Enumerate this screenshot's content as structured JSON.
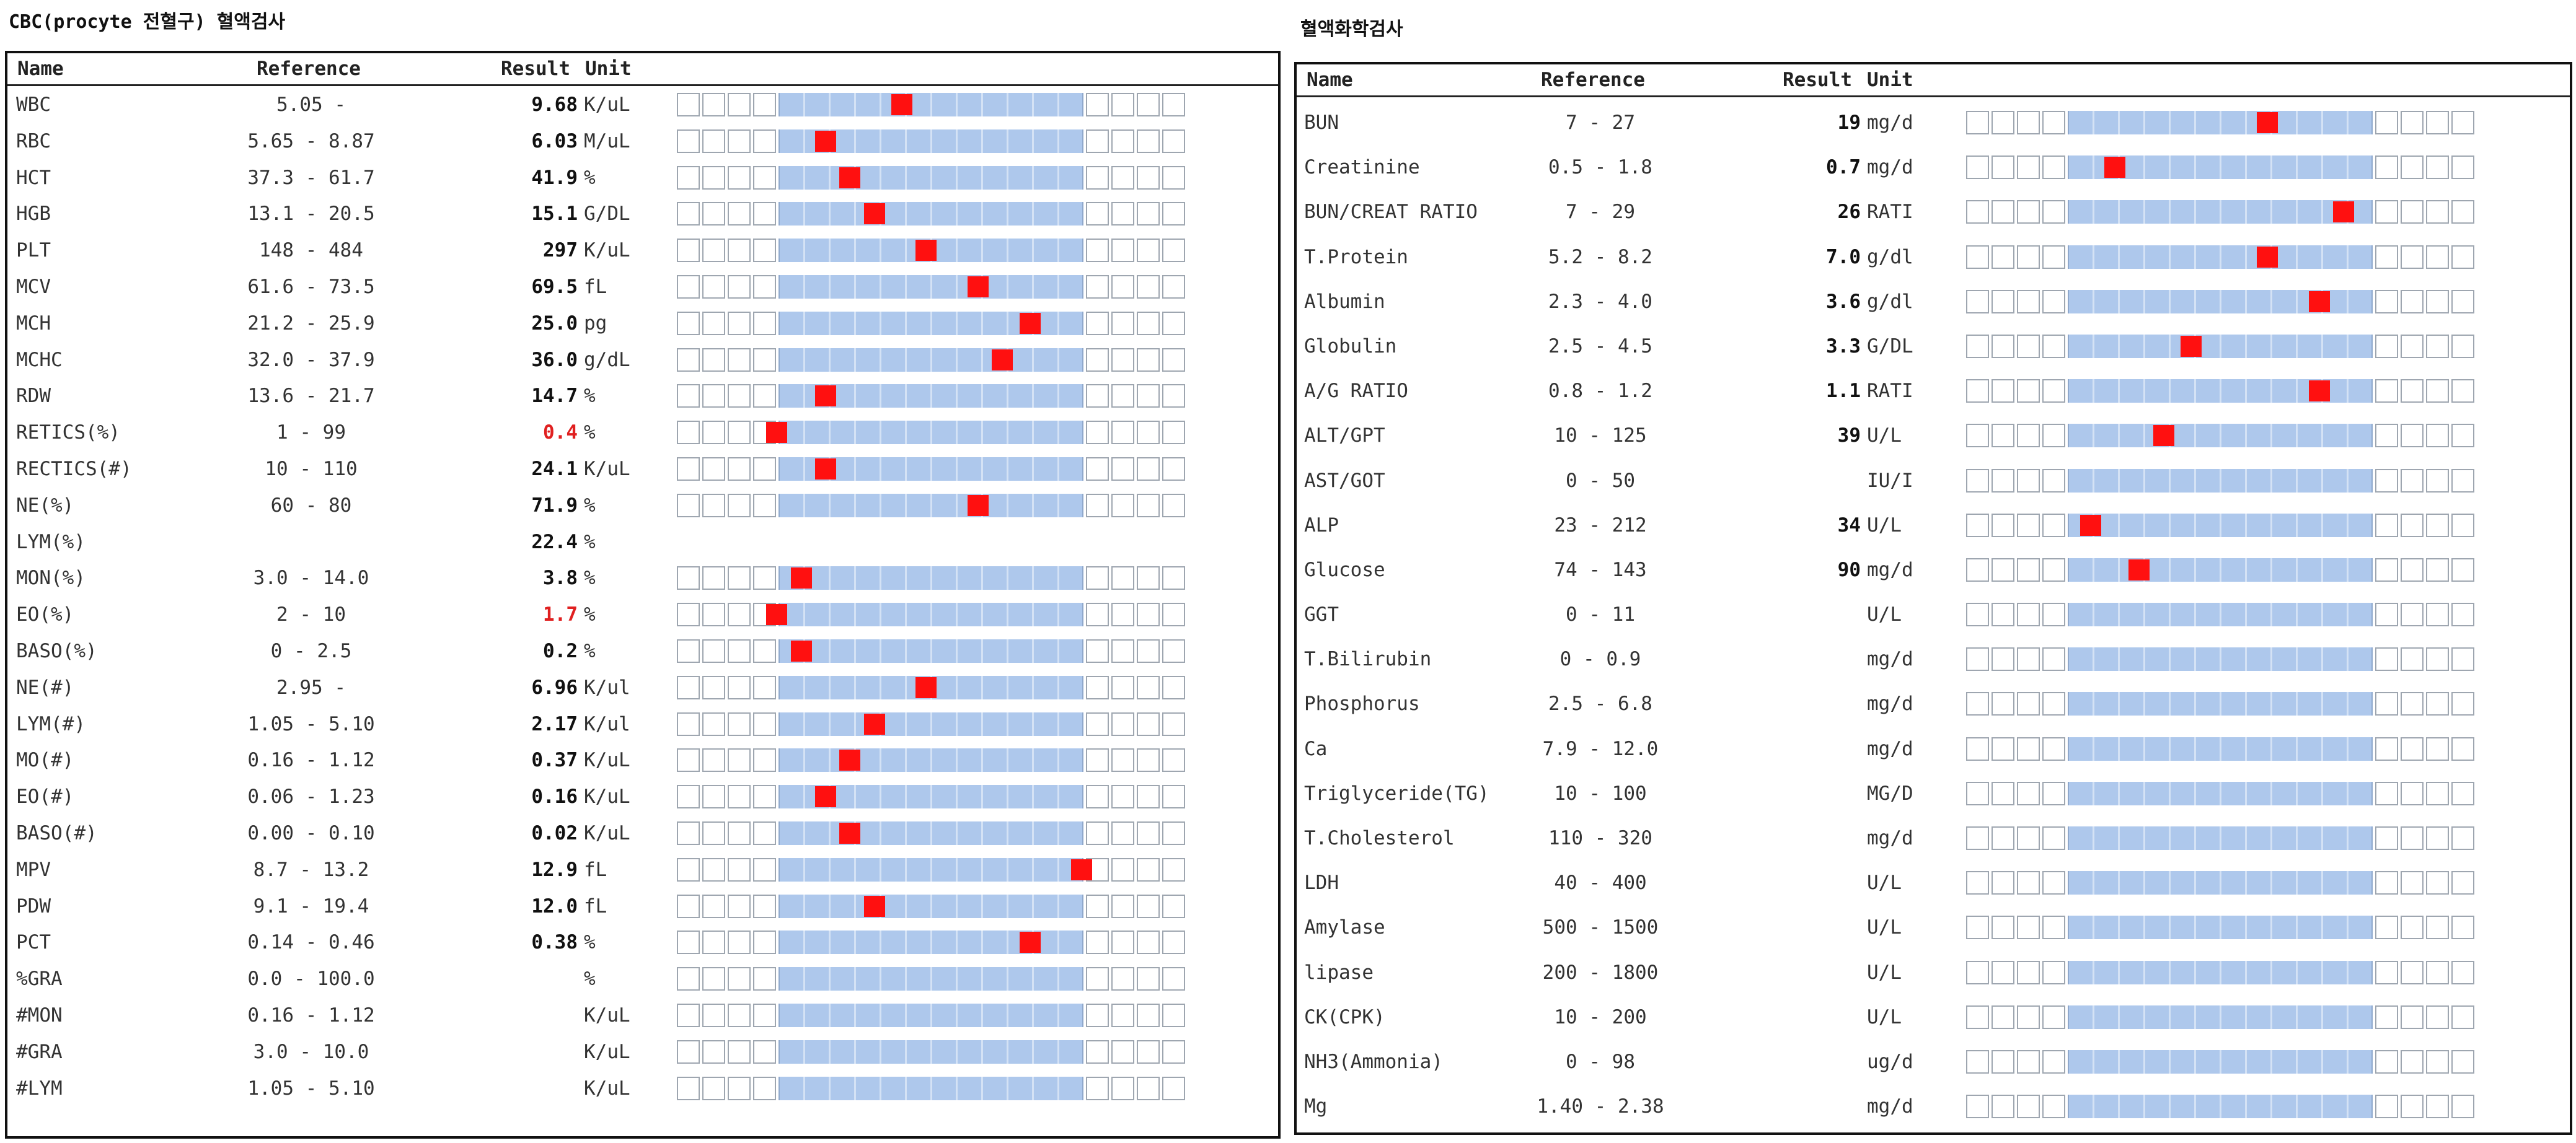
{
  "left": {
    "title": "CBC(procyte 전혈구) 혈액검사",
    "headers": {
      "name": "Name",
      "reference": "Reference",
      "result": "Result",
      "unit": "Unit"
    },
    "rows": [
      {
        "name": "WBC",
        "ref": "5.05 -",
        "result": "9.68",
        "unit": "K/uL",
        "level": 0.37,
        "gauge": true
      },
      {
        "name": "RBC",
        "ref": "5.65 - 8.87",
        "result": "6.03",
        "unit": "M/uL",
        "level": 0.12,
        "gauge": true
      },
      {
        "name": "HCT",
        "ref": "37.3 - 61.7",
        "result": "41.9",
        "unit": "%",
        "level": 0.2,
        "gauge": true
      },
      {
        "name": "HGB",
        "ref": "13.1 - 20.5",
        "result": "15.1",
        "unit": "G/DL",
        "level": 0.28,
        "gauge": true
      },
      {
        "name": "PLT",
        "ref": "148 - 484",
        "result": "297",
        "unit": "K/uL",
        "level": 0.45,
        "gauge": true
      },
      {
        "name": "MCV",
        "ref": "61.6 - 73.5",
        "result": "69.5",
        "unit": "fL",
        "level": 0.62,
        "gauge": true
      },
      {
        "name": "MCH",
        "ref": "21.2 - 25.9",
        "result": "25.0",
        "unit": "pg",
        "level": 0.79,
        "gauge": true
      },
      {
        "name": "MCHC",
        "ref": "32.0 - 37.9",
        "result": "36.0",
        "unit": "g/dL",
        "level": 0.7,
        "gauge": true
      },
      {
        "name": "RDW",
        "ref": "13.6 - 21.7",
        "result": "14.7",
        "unit": "%",
        "level": 0.12,
        "gauge": true
      },
      {
        "name": "RETICS(%)",
        "ref": "1 - 99",
        "result": "0.4",
        "unit": "%",
        "level": -0.04,
        "gauge": true,
        "abnormal": true
      },
      {
        "name": "RECTICS(#)",
        "ref": "10 - 110",
        "result": "24.1",
        "unit": "K/uL",
        "level": 0.12,
        "gauge": true
      },
      {
        "name": "NE(%)",
        "ref": "60 - 80",
        "result": "71.9",
        "unit": "%",
        "level": 0.62,
        "gauge": true
      },
      {
        "name": "LYM(%)",
        "ref": "",
        "result": "22.4",
        "unit": "%",
        "level": null,
        "gauge": false
      },
      {
        "name": "MON(%)",
        "ref": "3.0 - 14.0",
        "result": "3.8",
        "unit": "%",
        "level": 0.04,
        "gauge": true
      },
      {
        "name": "EO(%)",
        "ref": "2 - 10",
        "result": "1.7",
        "unit": "%",
        "level": -0.04,
        "gauge": true,
        "abnormal": true
      },
      {
        "name": "BASO(%)",
        "ref": "0 - 2.5",
        "result": "0.2",
        "unit": "%",
        "level": 0.04,
        "gauge": true
      },
      {
        "name": "NE(#)",
        "ref": "2.95 -",
        "result": "6.96",
        "unit": "K/ul",
        "level": 0.45,
        "gauge": true
      },
      {
        "name": "LYM(#)",
        "ref": "1.05 - 5.10",
        "result": "2.17",
        "unit": "K/ul",
        "level": 0.28,
        "gauge": true
      },
      {
        "name": "MO(#)",
        "ref": "0.16 - 1.12",
        "result": "0.37",
        "unit": "K/uL",
        "level": 0.2,
        "gauge": true
      },
      {
        "name": "EO(#)",
        "ref": "0.06 - 1.23",
        "result": "0.16",
        "unit": "K/uL",
        "level": 0.12,
        "gauge": true
      },
      {
        "name": "BASO(#)",
        "ref": "0.00 - 0.10",
        "result": "0.02",
        "unit": "K/uL",
        "level": 0.2,
        "gauge": true
      },
      {
        "name": "MPV",
        "ref": "8.7 - 13.2",
        "result": "12.9",
        "unit": "fL",
        "level": 0.96,
        "gauge": true
      },
      {
        "name": "PDW",
        "ref": "9.1 - 19.4",
        "result": "12.0",
        "unit": "fL",
        "level": 0.28,
        "gauge": true
      },
      {
        "name": "PCT",
        "ref": "0.14 - 0.46",
        "result": "0.38",
        "unit": "%",
        "level": 0.79,
        "gauge": true
      },
      {
        "name": "%GRA",
        "ref": "0.0 - 100.0",
        "result": "",
        "unit": "%",
        "level": null,
        "gauge": true
      },
      {
        "name": "#MON",
        "ref": "0.16 - 1.12",
        "result": "",
        "unit": "K/uL",
        "level": null,
        "gauge": true
      },
      {
        "name": "#GRA",
        "ref": "3.0 - 10.0",
        "result": "",
        "unit": "K/uL",
        "level": null,
        "gauge": true
      },
      {
        "name": "#LYM",
        "ref": "1.05 - 5.10",
        "result": "",
        "unit": "K/uL",
        "level": null,
        "gauge": true
      }
    ]
  },
  "right": {
    "title": "혈액화학검사",
    "headers": {
      "name": "Name",
      "reference": "Reference",
      "result": "Result",
      "unit": "Unit"
    },
    "rows": [
      {
        "name": "BUN",
        "ref": "7 - 27",
        "result": "19",
        "unit": "mg/d",
        "level": 0.62,
        "gauge": true
      },
      {
        "name": "Creatinine",
        "ref": "0.5 - 1.8",
        "result": "0.7",
        "unit": "mg/d",
        "level": 0.12,
        "gauge": true
      },
      {
        "name": "BUN/CREAT RATIO",
        "ref": "7 - 29",
        "result": "26",
        "unit": "RATI",
        "level": 0.87,
        "gauge": true
      },
      {
        "name": "T.Protein",
        "ref": "5.2 - 8.2",
        "result": "7.0",
        "unit": "g/dl",
        "level": 0.62,
        "gauge": true
      },
      {
        "name": "Albumin",
        "ref": "2.3 - 4.0",
        "result": "3.6",
        "unit": "g/dl",
        "level": 0.79,
        "gauge": true
      },
      {
        "name": "Globulin",
        "ref": "2.5 - 4.5",
        "result": "3.3",
        "unit": "G/DL",
        "level": 0.37,
        "gauge": true
      },
      {
        "name": "A/G RATIO",
        "ref": "0.8 - 1.2",
        "result": "1.1",
        "unit": "RATI",
        "level": 0.79,
        "gauge": true
      },
      {
        "name": "ALT/GPT",
        "ref": "10 - 125",
        "result": "39",
        "unit": "U/L",
        "level": 0.28,
        "gauge": true
      },
      {
        "name": "AST/GOT",
        "ref": "0 - 50",
        "result": "",
        "unit": "IU/I",
        "level": null,
        "gauge": true
      },
      {
        "name": "ALP",
        "ref": "23 - 212",
        "result": "34",
        "unit": "U/L",
        "level": 0.04,
        "gauge": true
      },
      {
        "name": "Glucose",
        "ref": "74 - 143",
        "result": "90",
        "unit": "mg/d",
        "level": 0.2,
        "gauge": true
      },
      {
        "name": "GGT",
        "ref": "0 - 11",
        "result": "",
        "unit": "U/L",
        "level": null,
        "gauge": true
      },
      {
        "name": "T.Bilirubin",
        "ref": "0 - 0.9",
        "result": "",
        "unit": "mg/d",
        "level": null,
        "gauge": true
      },
      {
        "name": "Phosphorus",
        "ref": "2.5 - 6.8",
        "result": "",
        "unit": "mg/d",
        "level": null,
        "gauge": true
      },
      {
        "name": "Ca",
        "ref": "7.9 - 12.0",
        "result": "",
        "unit": "mg/d",
        "level": null,
        "gauge": true
      },
      {
        "name": "Triglyceride(TG)",
        "ref": "10 - 100",
        "result": "",
        "unit": "MG/D",
        "level": null,
        "gauge": true
      },
      {
        "name": "T.Cholesterol",
        "ref": "110 - 320",
        "result": "",
        "unit": "mg/d",
        "level": null,
        "gauge": true
      },
      {
        "name": "LDH",
        "ref": "40 - 400",
        "result": "",
        "unit": "U/L",
        "level": null,
        "gauge": true
      },
      {
        "name": "Amylase",
        "ref": "500 - 1500",
        "result": "",
        "unit": "U/L",
        "level": null,
        "gauge": true
      },
      {
        "name": "lipase",
        "ref": "200 - 1800",
        "result": "",
        "unit": "U/L",
        "level": null,
        "gauge": true
      },
      {
        "name": "CK(CPK)",
        "ref": "10 - 200",
        "result": "",
        "unit": "U/L",
        "level": null,
        "gauge": true
      },
      {
        "name": "NH3(Ammonia)",
        "ref": "0 - 98",
        "result": "",
        "unit": "ug/d",
        "level": null,
        "gauge": true
      },
      {
        "name": "Mg",
        "ref": "1.40 - 2.38",
        "result": "",
        "unit": "mg/d",
        "level": null,
        "gauge": true
      }
    ]
  },
  "colors": {
    "abnormal": "#e02020",
    "band": "#aec8ec",
    "marker": "#ff1010"
  }
}
